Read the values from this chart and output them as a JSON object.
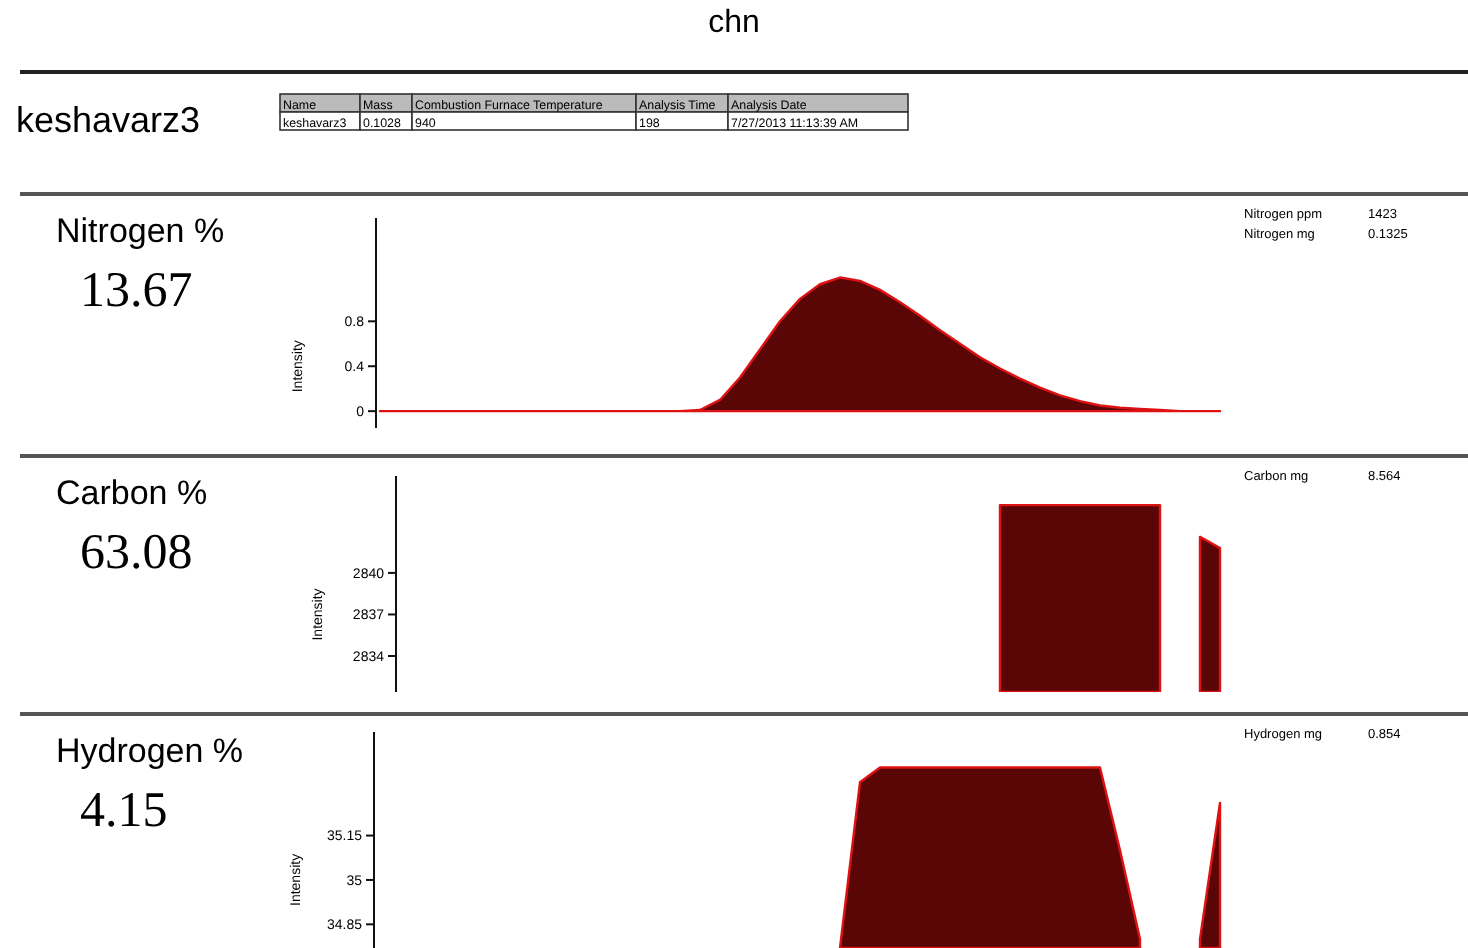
{
  "chart_data": [
    {
      "type": "other",
      "title": "chn",
      "annotations": [
        "keshavarz3",
        "Name",
        "Mass",
        "Combustion Furnace Temperature",
        "Analysis Time",
        "Analysis Date",
        "keshavarz3",
        "0.1028",
        "940",
        "198",
        "7/27/2013 11:13:39 AM"
      ]
    },
    {
      "type": "area",
      "title": "Nitrogen %",
      "subtitle": "13.67",
      "ylabel": "Intensity",
      "annotations": [
        "Nitrogen ppm",
        "1423",
        "Nitrogen mg",
        "0.1325"
      ],
      "categories": [
        null,
        null,
        null,
        null,
        null,
        null,
        null,
        null,
        null,
        null,
        null,
        null,
        null,
        null,
        null,
        null,
        null,
        null,
        null,
        null,
        null,
        null,
        null,
        null,
        null,
        null,
        null,
        null,
        null,
        null,
        null,
        null,
        null,
        null,
        null,
        null,
        null,
        null,
        null,
        null,
        null,
        null,
        null
      ],
      "ylim": [
        -0.15,
        1.72
      ],
      "yticks": [
        0,
        0.4,
        0.8
      ],
      "tick_labels": "y",
      "series": [
        {
          "color": "#5a0606",
          "values": [
            0,
            0,
            0,
            0,
            0,
            0,
            0,
            0,
            0,
            0,
            0,
            0,
            0,
            0,
            0,
            0,
            0.01,
            0.1,
            0.3,
            0.55,
            0.8,
            1.0,
            1.13,
            1.19,
            1.16,
            1.08,
            0.97,
            0.85,
            0.72,
            0.6,
            0.48,
            0.38,
            0.29,
            0.21,
            0.14,
            0.09,
            0.05,
            0.03,
            0.02,
            0.01,
            0,
            0,
            0
          ]
        }
      ]
    },
    {
      "type": "area",
      "title": "Carbon %",
      "subtitle": "63.08",
      "ylabel": "Intensity",
      "annotations": [
        "Carbon mg",
        "8.564"
      ],
      "categories": [
        null,
        null,
        null,
        null,
        null,
        null,
        null,
        null,
        null,
        null,
        null,
        null,
        null,
        null,
        null,
        null,
        null,
        null,
        null,
        null,
        null,
        null,
        null,
        null,
        null,
        null,
        null,
        null,
        null,
        null,
        null,
        null,
        null,
        null,
        null,
        null,
        null,
        null,
        null,
        null,
        null,
        null,
        null
      ],
      "ylim": [
        2831.4,
        2847
      ],
      "yticks": [
        2834,
        2837,
        2840
      ],
      "tick_labels": "y",
      "series": [
        {
          "color": "#5a0606",
          "values": [
            null,
            null,
            null,
            null,
            null,
            null,
            null,
            null,
            null,
            null,
            null,
            null,
            null,
            null,
            null,
            null,
            null,
            null,
            null,
            null,
            null,
            null,
            null,
            null,
            null,
            null,
            null,
            null,
            null,
            null,
            null,
            2844.9,
            2844.9,
            2844.9,
            2844.9,
            2844.9,
            2844.9,
            2844.9,
            2844.9,
            2844.9,
            null,
            2842.6,
            2841.8
          ]
        }
      ]
    },
    {
      "type": "area",
      "title": "Hydrogen %",
      "subtitle": "4.15",
      "ylabel": "Intensity",
      "annotations": [
        "Hydrogen mg",
        "0.854"
      ],
      "categories": [
        null,
        null,
        null,
        null,
        null,
        null,
        null,
        null,
        null,
        null,
        null,
        null,
        null,
        null,
        null,
        null,
        null,
        null,
        null,
        null,
        null,
        null,
        null,
        null,
        null,
        null,
        null,
        null,
        null,
        null,
        null,
        null,
        null,
        null,
        null,
        null,
        null,
        null,
        null,
        null,
        null,
        null,
        null
      ],
      "ylim": [
        34.77,
        35.5
      ],
      "yticks": [
        34.85,
        35,
        35.15
      ],
      "tick_labels": "y",
      "series": [
        {
          "color": "#5a0606",
          "values": [
            null,
            null,
            null,
            null,
            null,
            null,
            null,
            null,
            null,
            null,
            null,
            null,
            null,
            null,
            null,
            null,
            null,
            null,
            null,
            null,
            null,
            null,
            null,
            34.77,
            35.33,
            35.38,
            35.38,
            35.38,
            35.38,
            35.38,
            35.38,
            35.38,
            35.38,
            35.38,
            35.38,
            35.38,
            35.38,
            35.1,
            34.8,
            null,
            null,
            34.8,
            35.26
          ]
        }
      ]
    }
  ]
}
